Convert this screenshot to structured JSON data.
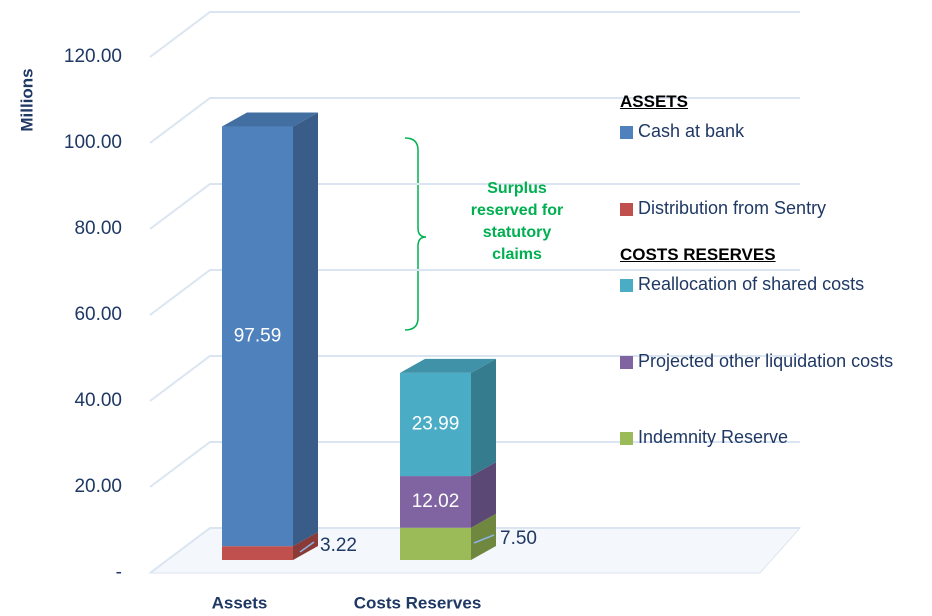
{
  "chart_data": {
    "type": "bar3d_stacked",
    "y_label": "Millions",
    "categories": [
      "Assets",
      "Costs Reserves"
    ],
    "legend_titles": [
      "ASSETS",
      "COSTS RESERVES"
    ],
    "series": [
      {
        "name": "Cash at bank",
        "color": "#4f81bd",
        "values": [
          97.59,
          null
        ]
      },
      {
        "name": "Distribution from Sentry",
        "color": "#c0504d",
        "values": [
          3.22,
          null
        ]
      },
      {
        "name": "Reallocation of shared costs",
        "color": "#4bacc6",
        "values": [
          null,
          23.99
        ]
      },
      {
        "name": "Projected other liquidation costs",
        "color": "#8064a2",
        "values": [
          null,
          12.02
        ]
      },
      {
        "name": "Indemnity Reserve",
        "color": "#9bbb59",
        "values": [
          null,
          7.5
        ],
        "value_labels": [
          null,
          "7.50"
        ]
      }
    ],
    "ylim": [
      0,
      120
    ],
    "yticks": [
      {
        "value": 0,
        "label": "-"
      },
      {
        "value": 20,
        "label": "20.00"
      },
      {
        "value": 40,
        "label": "40.00"
      },
      {
        "value": 60,
        "label": "60.00"
      },
      {
        "value": 80,
        "label": "80.00"
      },
      {
        "value": 100,
        "label": "100.00"
      },
      {
        "value": 120,
        "label": "120.00"
      }
    ],
    "annotation": "Surplus reserved for statutory claims",
    "grid": true
  }
}
